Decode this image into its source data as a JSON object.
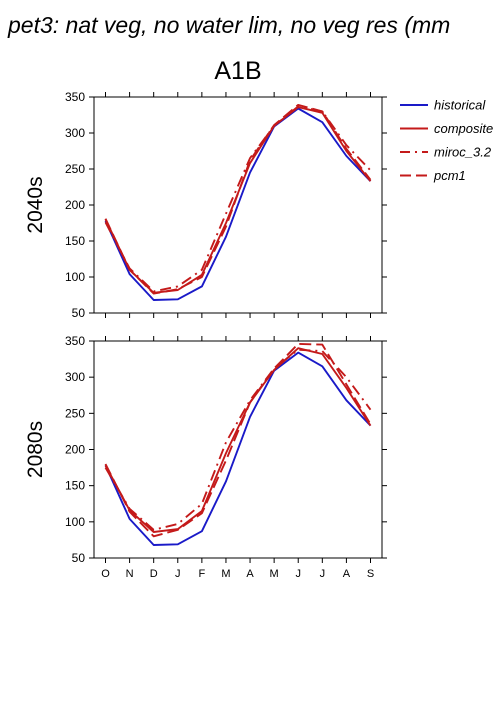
{
  "page_title": "pet3: nat veg, no water lim, no veg res (mm",
  "scenario": "A1B",
  "legend": [
    {
      "label": "historical",
      "color": "#1a1ac8",
      "dash": "solid"
    },
    {
      "label": "composite",
      "color": "#c41a1a",
      "dash": "solid"
    },
    {
      "label": "miroc_3.2",
      "color": "#c41a1a",
      "dash": "dashdot"
    },
    {
      "label": "pcm1",
      "color": "#c41a1a",
      "dash": "dash"
    }
  ],
  "chart_data": [
    {
      "type": "line",
      "ylabel": "2040s",
      "xlabel": "",
      "categories": [
        "O",
        "N",
        "D",
        "J",
        "F",
        "M",
        "A",
        "M",
        "J",
        "J",
        "A",
        "S"
      ],
      "ylim": [
        50,
        350
      ],
      "yticks": [
        50,
        100,
        150,
        200,
        250,
        300,
        350
      ],
      "series": [
        {
          "name": "historical",
          "values": [
            178,
            104,
            68,
            69,
            87,
            156,
            245,
            309,
            334,
            315,
            268,
            233
          ]
        },
        {
          "name": "composite",
          "values": [
            180,
            110,
            78,
            82,
            103,
            175,
            258,
            310,
            336,
            328,
            275,
            233
          ]
        },
        {
          "name": "miroc_3.2",
          "values": [
            176,
            112,
            80,
            87,
            110,
            188,
            265,
            310,
            337,
            330,
            283,
            248
          ]
        },
        {
          "name": "pcm1",
          "values": [
            181,
            110,
            77,
            83,
            100,
            170,
            262,
            311,
            339,
            330,
            278,
            235
          ]
        }
      ]
    },
    {
      "type": "line",
      "ylabel": "2080s",
      "xlabel": "",
      "categories": [
        "O",
        "N",
        "D",
        "J",
        "F",
        "M",
        "A",
        "M",
        "J",
        "J",
        "A",
        "S"
      ],
      "ylim": [
        50,
        350
      ],
      "yticks": [
        50,
        100,
        150,
        200,
        250,
        300,
        350
      ],
      "series": [
        {
          "name": "historical",
          "values": [
            178,
            104,
            68,
            69,
            87,
            156,
            245,
            309,
            334,
            315,
            268,
            233
          ]
        },
        {
          "name": "composite",
          "values": [
            178,
            116,
            86,
            90,
            115,
            195,
            265,
            310,
            340,
            332,
            285,
            233
          ]
        },
        {
          "name": "miroc_3.2",
          "values": [
            175,
            118,
            89,
            97,
            125,
            210,
            268,
            312,
            338,
            336,
            300,
            255
          ]
        },
        {
          "name": "pcm1",
          "values": [
            180,
            114,
            80,
            89,
            112,
            185,
            265,
            312,
            346,
            345,
            290,
            235
          ]
        }
      ]
    }
  ]
}
